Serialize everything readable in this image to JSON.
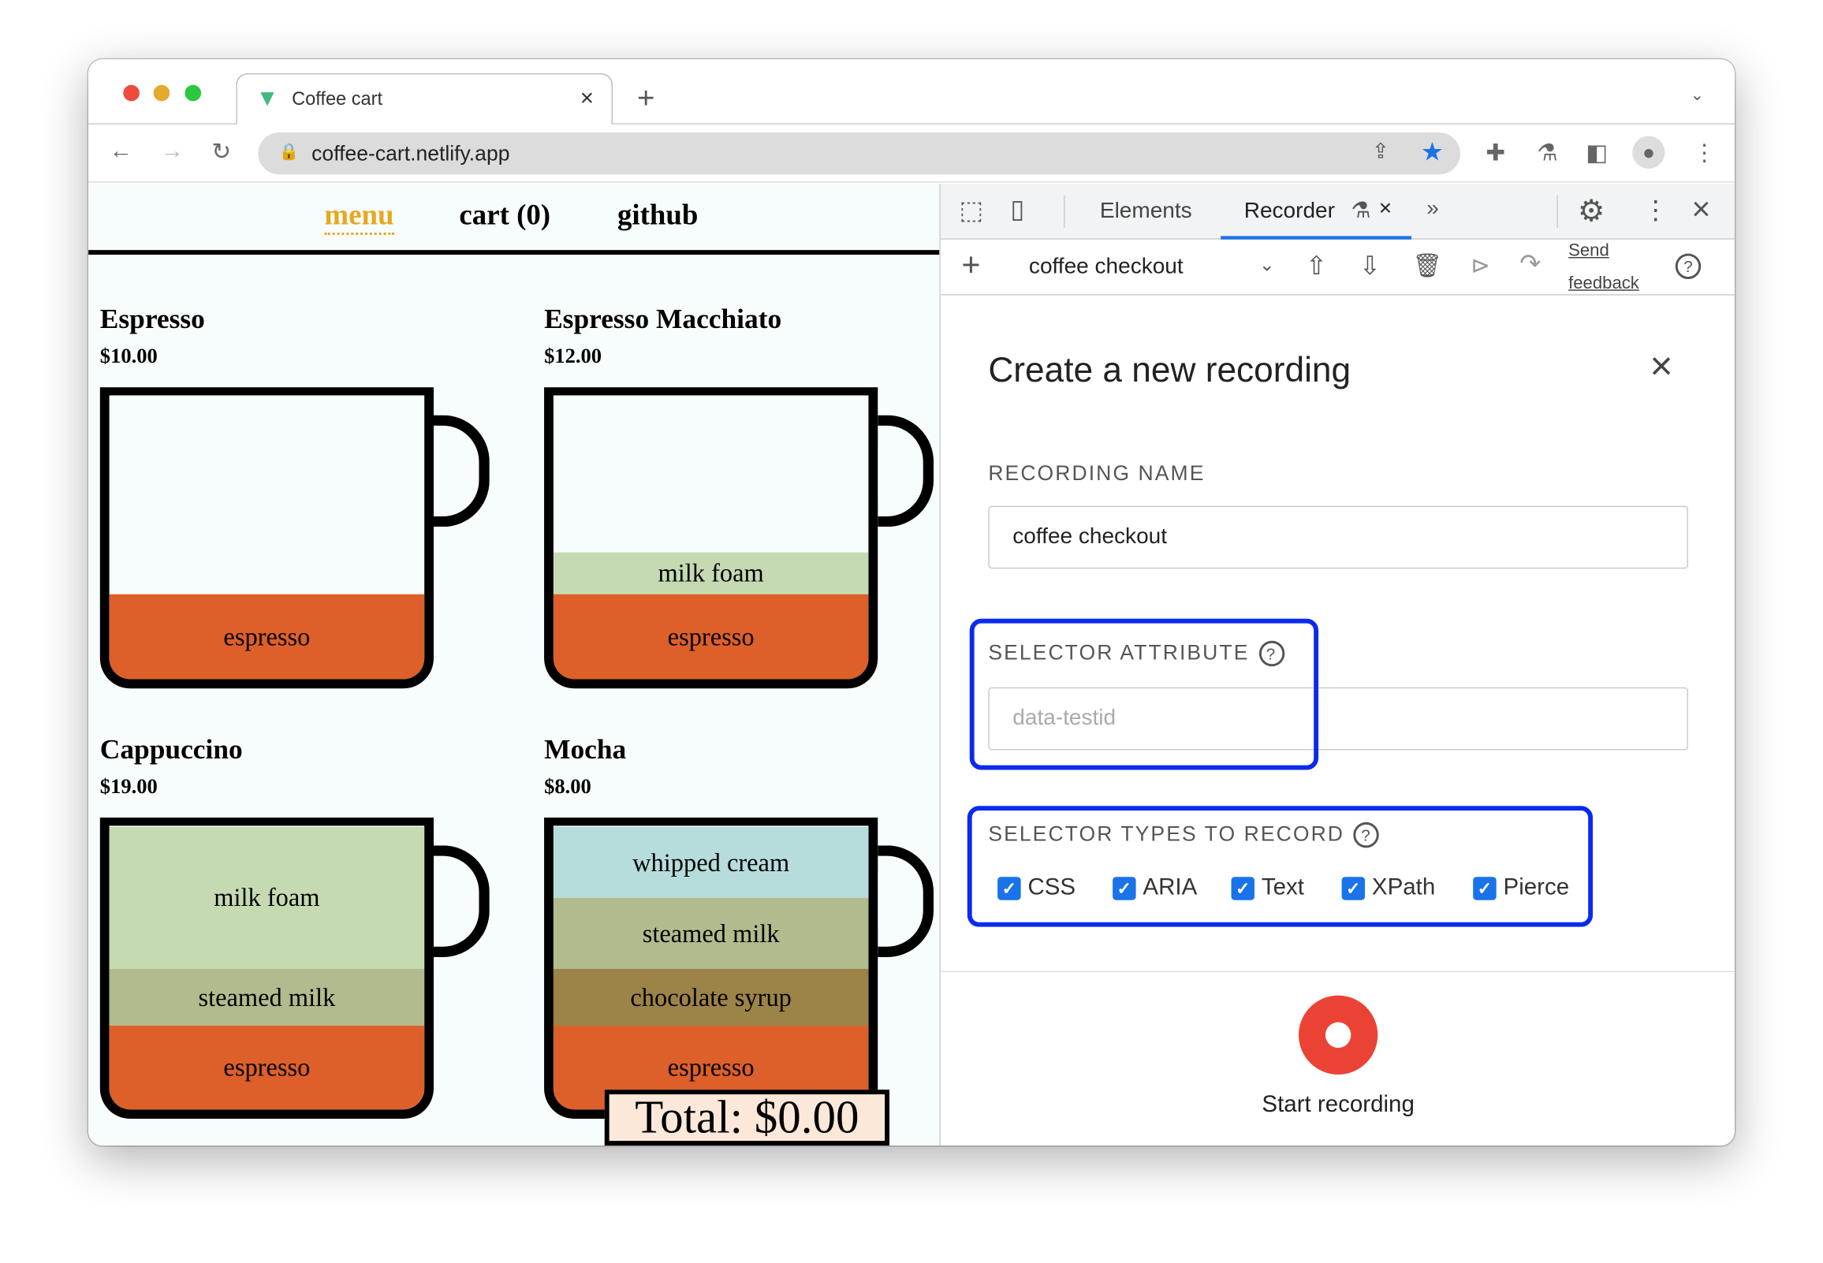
{
  "browser": {
    "tab_title": "Coffee cart",
    "url": "coffee-cart.netlify.app"
  },
  "site": {
    "nav": [
      "menu",
      "cart (0)",
      "github"
    ],
    "products": [
      {
        "name": "Espresso",
        "price": "$10.00",
        "layers": [
          {
            "label": "espresso",
            "color": "#dd5f29"
          }
        ]
      },
      {
        "name": "Espresso Macchiato",
        "price": "$12.00",
        "layers": [
          {
            "label": "milk foam",
            "color": "#c6dab2"
          },
          {
            "label": "espresso",
            "color": "#dd5f29"
          }
        ]
      },
      {
        "name": "Cappuccino",
        "price": "$19.00",
        "layers": [
          {
            "label": "milk foam",
            "color": "#c6dab2"
          },
          {
            "label": "steamed milk",
            "color": "#b2bb8d"
          },
          {
            "label": "espresso",
            "color": "#dd5f29"
          }
        ]
      },
      {
        "name": "Mocha",
        "price": "$8.00",
        "layers": [
          {
            "label": "whipped cream",
            "color": "#b6dddb"
          },
          {
            "label": "steamed milk",
            "color": "#b2bb8d"
          },
          {
            "label": "chocolate syrup",
            "color": "#9c8347"
          },
          {
            "label": "espresso",
            "color": "#dd5f29"
          }
        ]
      }
    ],
    "total": "Total: $0.00"
  },
  "devtools": {
    "tabs": [
      "Elements",
      "Recorder"
    ],
    "recording_select": "coffee checkout",
    "feedback_line1": "Send",
    "feedback_line2": "feedback",
    "dialog": {
      "title": "Create a new recording",
      "name_label": "RECORDING NAME",
      "name_value": "coffee checkout",
      "selector_attr_label": "SELECTOR ATTRIBUTE",
      "selector_attr_placeholder": "data-testid",
      "selector_types_label": "SELECTOR TYPES TO RECORD",
      "selector_types": [
        {
          "label": "CSS",
          "checked": true
        },
        {
          "label": "ARIA",
          "checked": true
        },
        {
          "label": "Text",
          "checked": true
        },
        {
          "label": "XPath",
          "checked": true
        },
        {
          "label": "Pierce",
          "checked": true
        }
      ],
      "start_label": "Start recording"
    },
    "highlight_color": "#0a2af0",
    "record_color": "#ea4335"
  }
}
